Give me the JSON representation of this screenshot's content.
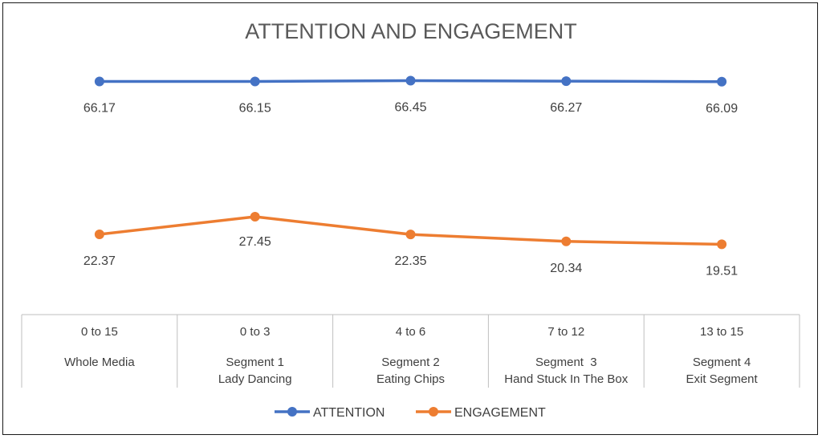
{
  "chart_data": {
    "type": "line",
    "title": "ATTENTION AND ENGAGEMENT",
    "categories": [
      {
        "range": "0 to 15",
        "lines": [
          "Whole Media"
        ]
      },
      {
        "range": "0 to 3",
        "lines": [
          "Segment 1",
          "Lady Dancing"
        ]
      },
      {
        "range": "4 to 6",
        "lines": [
          "Segment 2",
          "Eating Chips"
        ]
      },
      {
        "range": "7 to 12",
        "lines": [
          "Segment  3",
          "Hand Stuck In The Box"
        ]
      },
      {
        "range": "13 to 15",
        "lines": [
          "Segment 4",
          "Exit Segment"
        ]
      }
    ],
    "series": [
      {
        "name": "ATTENTION",
        "color": "#4472C4",
        "values": [
          66.17,
          66.15,
          66.45,
          66.27,
          66.09
        ],
        "labels": [
          "66.17",
          "66.15",
          "66.45",
          "66.27",
          "66.09"
        ]
      },
      {
        "name": "ENGAGEMENT",
        "color": "#ED7D31",
        "values": [
          22.37,
          27.45,
          22.35,
          20.34,
          19.51
        ],
        "labels": [
          "22.37",
          "27.45",
          "22.35",
          "20.34",
          "19.51"
        ]
      }
    ],
    "legend_position": "bottom",
    "grid": false
  }
}
